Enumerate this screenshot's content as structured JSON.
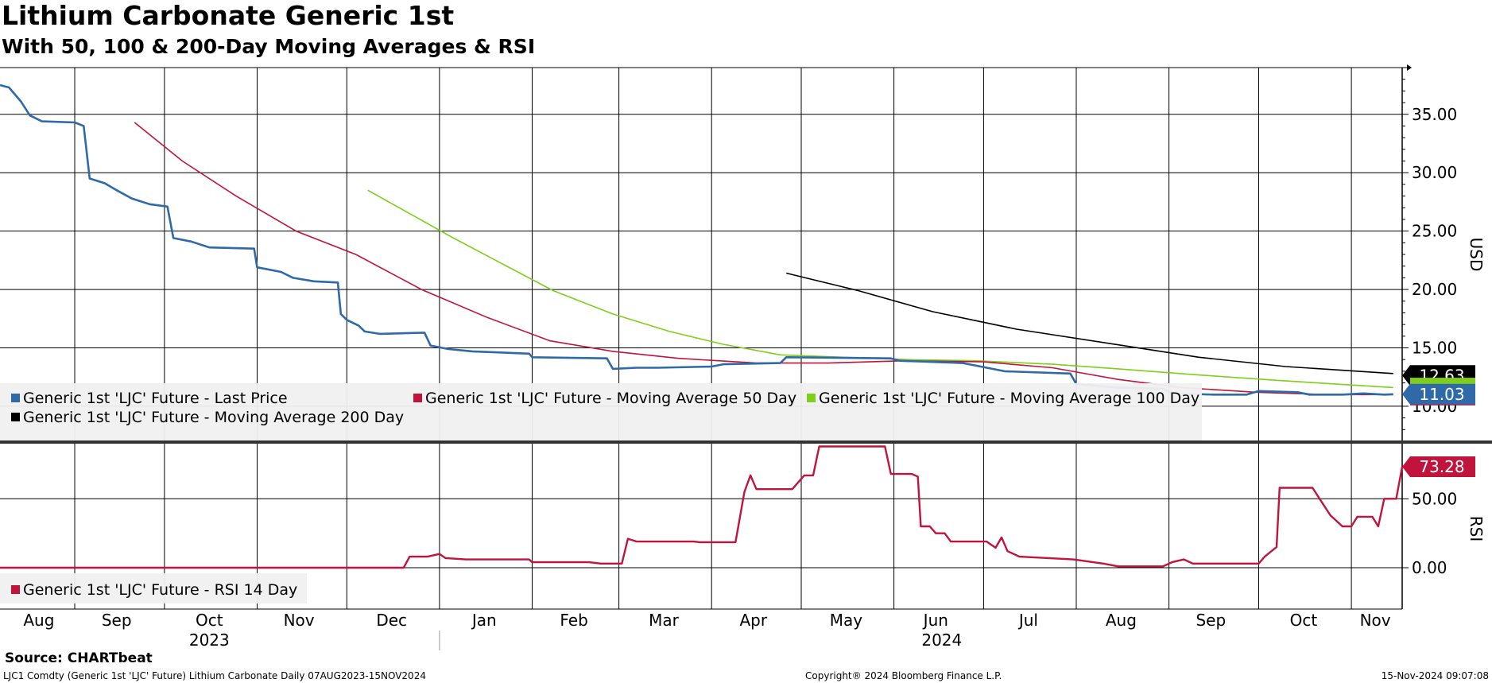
{
  "header": {
    "title": "Lithium Carbonate Generic 1st",
    "subtitle": "With 50, 100 & 200-Day Moving Averages & RSI"
  },
  "footer": {
    "source": "Source: CHARTbeat",
    "description": "LJC1 Comdty (Generic 1st 'LJC' Future) Lithium Carbonate  Daily 07AUG2023-15NOV2024",
    "copyright": "Copyright® 2024 Bloomberg Finance L.P.",
    "timestamp": "15-Nov-2024 09:07:08"
  },
  "colors": {
    "last_price": "#2e6aa8",
    "ma50": "#c0143c",
    "ma100": "#7fcf1a",
    "ma200": "#000000",
    "rsi": "#c0143c",
    "grid": "#000000",
    "legend_bg": "#f0f0f0"
  },
  "chart_data": [
    {
      "type": "line",
      "ylabel": "USD",
      "ylim": [
        7,
        39
      ],
      "y_ticks": [
        "35.00",
        "30.00",
        "25.00",
        "20.00",
        "15.00",
        "10.00"
      ],
      "y_tick_values": [
        35,
        30,
        25,
        20,
        15,
        10
      ],
      "x_months": [
        "Aug",
        "Sep",
        "Oct",
        "Nov",
        "Dec",
        "Jan",
        "Feb",
        "Mar",
        "Apr",
        "May",
        "Jun",
        "Jul",
        "Aug",
        "Sep",
        "Oct",
        "Nov"
      ],
      "x_years": [
        "2023",
        "2024"
      ],
      "grid": true,
      "legend_position": "lower-left",
      "series": [
        {
          "name": "Generic 1st 'LJC' Future - Last Price",
          "points": [
            [
              "2023-08-07",
              37.5
            ],
            [
              "2023-08-10",
              37.3
            ],
            [
              "2023-08-14",
              36.1
            ],
            [
              "2023-08-17",
              34.9
            ],
            [
              "2023-08-21",
              34.4
            ],
            [
              "2023-09-01",
              34.3
            ],
            [
              "2023-09-04",
              34.0
            ],
            [
              "2023-09-06",
              29.5
            ],
            [
              "2023-09-11",
              29.1
            ],
            [
              "2023-09-15",
              28.5
            ],
            [
              "2023-09-20",
              27.8
            ],
            [
              "2023-09-26",
              27.3
            ],
            [
              "2023-10-02",
              27.1
            ],
            [
              "2023-10-04",
              24.4
            ],
            [
              "2023-10-10",
              24.1
            ],
            [
              "2023-10-16",
              23.6
            ],
            [
              "2023-10-31",
              23.5
            ],
            [
              "2023-11-01",
              21.9
            ],
            [
              "2023-11-09",
              21.5
            ],
            [
              "2023-11-13",
              21.0
            ],
            [
              "2023-11-20",
              20.7
            ],
            [
              "2023-11-28",
              20.6
            ],
            [
              "2023-11-29",
              17.9
            ],
            [
              "2023-12-01",
              17.4
            ],
            [
              "2023-12-05",
              16.9
            ],
            [
              "2023-12-07",
              16.4
            ],
            [
              "2023-12-12",
              16.2
            ],
            [
              "2023-12-27",
              16.3
            ],
            [
              "2023-12-29",
              15.2
            ],
            [
              "2024-01-04",
              14.9
            ],
            [
              "2024-01-12",
              14.7
            ],
            [
              "2024-01-31",
              14.5
            ],
            [
              "2024-02-01",
              14.2
            ],
            [
              "2024-02-26",
              14.1
            ],
            [
              "2024-02-28",
              13.2
            ],
            [
              "2024-03-07",
              13.3
            ],
            [
              "2024-03-14",
              13.3
            ],
            [
              "2024-04-01",
              13.4
            ],
            [
              "2024-04-05",
              13.6
            ],
            [
              "2024-04-24",
              13.7
            ],
            [
              "2024-04-26",
              14.2
            ],
            [
              "2024-05-31",
              14.1
            ],
            [
              "2024-06-03",
              13.9
            ],
            [
              "2024-06-24",
              13.7
            ],
            [
              "2024-06-28",
              13.5
            ],
            [
              "2024-07-08",
              13.0
            ],
            [
              "2024-07-30",
              12.8
            ],
            [
              "2024-08-01",
              11.9
            ],
            [
              "2024-08-15",
              11.6
            ],
            [
              "2024-08-30",
              11.5
            ],
            [
              "2024-09-02",
              11.1
            ],
            [
              "2024-09-16",
              11.0
            ],
            [
              "2024-09-27",
              11.0
            ],
            [
              "2024-10-01",
              11.3
            ],
            [
              "2024-10-14",
              11.2
            ],
            [
              "2024-10-18",
              11.0
            ],
            [
              "2024-10-29",
              11.0
            ],
            [
              "2024-11-05",
              11.1
            ],
            [
              "2024-11-12",
              11.0
            ],
            [
              "2024-11-15",
              11.03
            ]
          ]
        },
        {
          "name": "Generic 1st 'LJC' Future - Moving Average 50 Day",
          "points": [
            [
              "2023-09-21",
              34.3
            ],
            [
              "2023-10-07",
              31.0
            ],
            [
              "2023-10-25",
              28.0
            ],
            [
              "2023-11-14",
              25.0
            ],
            [
              "2023-12-04",
              23.0
            ],
            [
              "2023-12-26",
              20.0
            ],
            [
              "2024-01-17",
              17.6
            ],
            [
              "2024-02-07",
              15.6
            ],
            [
              "2024-02-28",
              14.7
            ],
            [
              "2024-03-21",
              14.1
            ],
            [
              "2024-04-16",
              13.7
            ],
            [
              "2024-05-10",
              13.7
            ],
            [
              "2024-06-05",
              13.9
            ],
            [
              "2024-07-01",
              13.8
            ],
            [
              "2024-07-24",
              13.3
            ],
            [
              "2024-08-15",
              12.3
            ],
            [
              "2024-09-05",
              11.6
            ],
            [
              "2024-09-30",
              11.2
            ],
            [
              "2024-10-24",
              11.0
            ],
            [
              "2024-11-15",
              11.0
            ]
          ]
        },
        {
          "name": "Generic 1st 'LJC' Future - Moving Average 100 Day",
          "points": [
            [
              "2023-12-08",
              28.5
            ],
            [
              "2023-12-22",
              26.5
            ],
            [
              "2024-01-05",
              24.5
            ],
            [
              "2024-01-22",
              22.2
            ],
            [
              "2024-02-08",
              19.9
            ],
            [
              "2024-02-28",
              17.9
            ],
            [
              "2024-03-18",
              16.4
            ],
            [
              "2024-04-05",
              15.3
            ],
            [
              "2024-04-24",
              14.4
            ],
            [
              "2024-05-15",
              14.2
            ],
            [
              "2024-06-05",
              14.0
            ],
            [
              "2024-06-28",
              13.9
            ],
            [
              "2024-07-24",
              13.6
            ],
            [
              "2024-08-15",
              13.2
            ],
            [
              "2024-09-10",
              12.7
            ],
            [
              "2024-10-08",
              12.2
            ],
            [
              "2024-11-15",
              11.6
            ]
          ]
        },
        {
          "name": "Generic 1st 'LJC' Future - Moving Average 200 Day",
          "points": [
            [
              "2024-04-26",
              21.4
            ],
            [
              "2024-05-20",
              19.9
            ],
            [
              "2024-06-14",
              18.1
            ],
            [
              "2024-07-12",
              16.6
            ],
            [
              "2024-08-14",
              15.3
            ],
            [
              "2024-09-11",
              14.2
            ],
            [
              "2024-10-10",
              13.4
            ],
            [
              "2024-11-15",
              12.8
            ]
          ]
        }
      ],
      "end_labels": [
        "12.63",
        "11.03"
      ]
    },
    {
      "type": "line",
      "ylabel": "RSI",
      "ylim": [
        -30,
        90
      ],
      "y_ticks": [
        "50.00",
        "0.00"
      ],
      "y_tick_values": [
        50,
        0
      ],
      "grid": true,
      "legend_position": "lower-left",
      "series": [
        {
          "name": "Generic 1st 'LJC' Future - RSI 14 Day",
          "points": [
            [
              "2023-08-07",
              0.0
            ],
            [
              "2023-12-20",
              0.0
            ],
            [
              "2023-12-22",
              8.0
            ],
            [
              "2023-12-28",
              8.0
            ],
            [
              "2024-01-01",
              10.0
            ],
            [
              "2024-01-03",
              7.0
            ],
            [
              "2024-01-10",
              6.0
            ],
            [
              "2024-01-31",
              6.0
            ],
            [
              "2024-02-01",
              4.0
            ],
            [
              "2024-02-20",
              4.0
            ],
            [
              "2024-02-24",
              3.0
            ],
            [
              "2024-03-02",
              3.0
            ],
            [
              "2024-03-04",
              21.0
            ],
            [
              "2024-03-07",
              19.0
            ],
            [
              "2024-03-26",
              19.0
            ],
            [
              "2024-03-28",
              18.5
            ],
            [
              "2024-04-09",
              18.5
            ],
            [
              "2024-04-12",
              55.0
            ],
            [
              "2024-04-14",
              67.0
            ],
            [
              "2024-04-16",
              57.0
            ],
            [
              "2024-04-28",
              57.0
            ],
            [
              "2024-05-02",
              67.0
            ],
            [
              "2024-05-05",
              67.0
            ],
            [
              "2024-05-07",
              88.0
            ],
            [
              "2024-05-29",
              88.0
            ],
            [
              "2024-05-31",
              68.0
            ],
            [
              "2024-06-07",
              68.0
            ],
            [
              "2024-06-09",
              66.0
            ],
            [
              "2024-06-10",
              30.0
            ],
            [
              "2024-06-13",
              30.0
            ],
            [
              "2024-06-15",
              25.0
            ],
            [
              "2024-06-18",
              25.0
            ],
            [
              "2024-06-20",
              19.0
            ],
            [
              "2024-07-02",
              19.0
            ],
            [
              "2024-07-05",
              14.5
            ],
            [
              "2024-07-07",
              22.0
            ],
            [
              "2024-07-09",
              12.0
            ],
            [
              "2024-07-13",
              8.0
            ],
            [
              "2024-07-31",
              6.0
            ],
            [
              "2024-08-10",
              3.0
            ],
            [
              "2024-08-15",
              1.0
            ],
            [
              "2024-08-30",
              1.0
            ],
            [
              "2024-09-02",
              4.0
            ],
            [
              "2024-09-06",
              6.0
            ],
            [
              "2024-09-09",
              3.0
            ],
            [
              "2024-10-01",
              3.0
            ],
            [
              "2024-10-03",
              8.0
            ],
            [
              "2024-10-07",
              15.0
            ],
            [
              "2024-10-08",
              58.0
            ],
            [
              "2024-10-19",
              58.0
            ],
            [
              "2024-10-22",
              48.0
            ],
            [
              "2024-10-25",
              38.0
            ],
            [
              "2024-10-29",
              30.0
            ],
            [
              "2024-11-01",
              30.0
            ],
            [
              "2024-11-03",
              37.0
            ],
            [
              "2024-11-08",
              37.0
            ],
            [
              "2024-11-10",
              30.0
            ],
            [
              "2024-11-12",
              50.0
            ],
            [
              "2024-11-16",
              50.0
            ],
            [
              "2024-11-18",
              73.28
            ]
          ]
        }
      ],
      "end_labels": [
        "73.28"
      ]
    }
  ]
}
